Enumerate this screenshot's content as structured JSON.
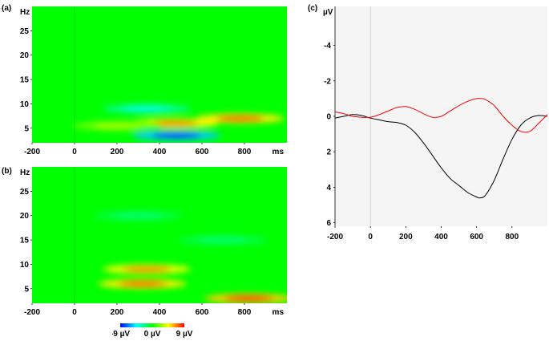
{
  "panels": {
    "a": "(a)",
    "b": "(b)",
    "c": "(c)"
  },
  "tf_axes": {
    "y_unit": "Hz",
    "x_unit": "ms",
    "y_ticks": [
      "5",
      "10",
      "15",
      "20",
      "25"
    ],
    "x_ticks": [
      "-200",
      "0",
      "200",
      "400",
      "600",
      "800"
    ]
  },
  "colorbar": {
    "labels": [
      "-9 µV",
      "0 µV",
      "9 µV"
    ],
    "colors": [
      "#0000ff",
      "#00ffff",
      "#00ff00",
      "#ffff00",
      "#ff0000"
    ]
  },
  "chart_data": [
    {
      "type": "heatmap",
      "panel": "(a)",
      "xlabel": "ms",
      "ylabel": "Hz",
      "xlim": [
        -200,
        1000
      ],
      "ylim": [
        2,
        30
      ],
      "zlim": [
        -9,
        9
      ],
      "background_value": 0,
      "blobs": [
        {
          "time_ms": 480,
          "freq_hz": 3.5,
          "value": -9
        },
        {
          "time_ms": 340,
          "freq_hz": 9,
          "value": -4
        },
        {
          "time_ms": 470,
          "freq_hz": 6,
          "value": 7
        },
        {
          "time_ms": 780,
          "freq_hz": 7,
          "value": 8
        },
        {
          "time_ms": 200,
          "freq_hz": 5.5,
          "value": 3
        }
      ]
    },
    {
      "type": "heatmap",
      "panel": "(b)",
      "xlabel": "ms",
      "ylabel": "Hz",
      "xlim": [
        -200,
        1000
      ],
      "ylim": [
        2,
        30
      ],
      "zlim": [
        -9,
        9
      ],
      "background_value": 0,
      "blobs": [
        {
          "time_ms": 340,
          "freq_hz": 9,
          "value": 7
        },
        {
          "time_ms": 320,
          "freq_hz": 6,
          "value": 8
        },
        {
          "time_ms": 820,
          "freq_hz": 3,
          "value": 9
        },
        {
          "time_ms": 300,
          "freq_hz": 20,
          "value": -2
        },
        {
          "time_ms": 700,
          "freq_hz": 15,
          "value": -2
        }
      ]
    },
    {
      "type": "line",
      "panel": "(c)",
      "ylabel": "µV",
      "xlim": [
        -200,
        1000
      ],
      "ylim": [
        -6.2,
        6.2
      ],
      "y_inverted": true,
      "x_ticks": [
        "-200",
        "0",
        "200",
        "400",
        "600",
        "800"
      ],
      "y_ticks": [
        "-4",
        "-2",
        "0",
        "2",
        "4",
        "6"
      ],
      "series": [
        {
          "color": "#000000",
          "x": [
            -200,
            -150,
            -100,
            -50,
            0,
            50,
            100,
            150,
            200,
            250,
            300,
            350,
            400,
            450,
            500,
            550,
            600,
            620,
            650,
            700,
            750,
            800,
            850,
            900,
            950,
            1000
          ],
          "y": [
            0.1,
            0.0,
            -0.1,
            -0.05,
            0.1,
            0.2,
            0.3,
            0.35,
            0.5,
            0.9,
            1.5,
            2.2,
            2.9,
            3.5,
            3.9,
            4.3,
            4.55,
            4.6,
            4.45,
            3.6,
            2.4,
            1.3,
            0.5,
            0.1,
            -0.05,
            0.0
          ]
        },
        {
          "color": "#ff0000",
          "x": [
            -200,
            -150,
            -100,
            -50,
            0,
            50,
            100,
            150,
            200,
            250,
            300,
            350,
            400,
            450,
            500,
            550,
            600,
            630,
            650,
            700,
            750,
            800,
            850,
            900,
            950,
            1000
          ],
          "y": [
            -0.25,
            -0.15,
            0.0,
            0.05,
            0.05,
            -0.1,
            -0.3,
            -0.5,
            -0.55,
            -0.4,
            -0.15,
            0.05,
            0.0,
            -0.3,
            -0.6,
            -0.85,
            -1.0,
            -1.0,
            -0.95,
            -0.6,
            0.0,
            0.5,
            0.85,
            0.85,
            0.4,
            -0.1
          ]
        }
      ]
    }
  ]
}
